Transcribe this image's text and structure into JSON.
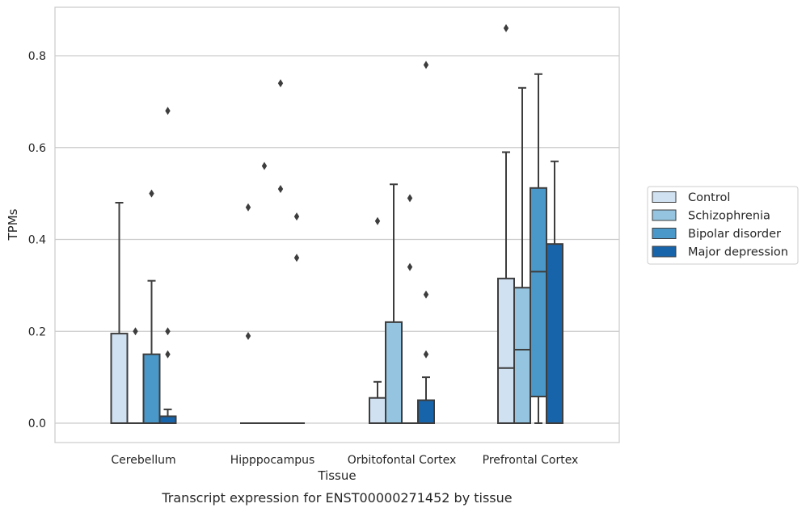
{
  "chart_data": {
    "type": "box",
    "title": "",
    "caption": "Transcript expression for ENST00000271452 by tissue",
    "xlabel": "Tissue",
    "ylabel": "TPMs",
    "ylim": [
      -0.04,
      0.905
    ],
    "yticks": [
      0.0,
      0.2,
      0.4,
      0.6,
      0.8
    ],
    "ytick_labels": [
      "0.0",
      "0.2",
      "0.4",
      "0.6",
      "0.8"
    ],
    "grid": "horizontal",
    "legend_position": "right",
    "categories": [
      "Cerebellum",
      "Hipppocampus",
      "Orbitofontal Cortex",
      "Prefrontal Cortex"
    ],
    "series": [
      {
        "name": "Control",
        "color": "#d0e1f2",
        "boxes": [
          {
            "q1": 0.0,
            "median": 0.0,
            "q3": 0.195,
            "whislo": 0.0,
            "whishi": 0.48,
            "fliers": []
          },
          {
            "q1": 0.0,
            "median": 0.0,
            "q3": 0.0,
            "whislo": 0.0,
            "whishi": 0.0,
            "fliers": [
              0.47,
              0.19
            ]
          },
          {
            "q1": 0.0,
            "median": 0.0,
            "q3": 0.055,
            "whislo": 0.0,
            "whishi": 0.09,
            "fliers": [
              0.44
            ]
          },
          {
            "q1": 0.0,
            "median": 0.12,
            "q3": 0.315,
            "whislo": 0.0,
            "whishi": 0.59,
            "fliers": [
              0.86
            ]
          }
        ]
      },
      {
        "name": "Schizophrenia",
        "color": "#94c4df",
        "boxes": [
          {
            "q1": 0.0,
            "median": 0.0,
            "q3": 0.0,
            "whislo": 0.0,
            "whishi": 0.0,
            "fliers": [
              0.2
            ]
          },
          {
            "q1": 0.0,
            "median": 0.0,
            "q3": 0.0,
            "whislo": 0.0,
            "whishi": 0.0,
            "fliers": [
              0.56
            ]
          },
          {
            "q1": 0.0,
            "median": 0.0,
            "q3": 0.22,
            "whislo": 0.0,
            "whishi": 0.52,
            "fliers": []
          },
          {
            "q1": 0.0,
            "median": 0.16,
            "q3": 0.295,
            "whislo": 0.0,
            "whishi": 0.73,
            "fliers": []
          }
        ]
      },
      {
        "name": "Bipolar disorder",
        "color": "#4a98c9",
        "boxes": [
          {
            "q1": 0.0,
            "median": 0.0,
            "q3": 0.15,
            "whislo": 0.0,
            "whishi": 0.31,
            "fliers": [
              0.5
            ]
          },
          {
            "q1": 0.0,
            "median": 0.0,
            "q3": 0.0,
            "whislo": 0.0,
            "whishi": 0.0,
            "fliers": [
              0.74,
              0.51
            ]
          },
          {
            "q1": 0.0,
            "median": 0.0,
            "q3": 0.0,
            "whislo": 0.0,
            "whishi": 0.0,
            "fliers": [
              0.49,
              0.34
            ]
          },
          {
            "q1": 0.058,
            "median": 0.33,
            "q3": 0.512,
            "whislo": 0.0,
            "whishi": 0.76,
            "fliers": []
          }
        ]
      },
      {
        "name": "Major depression",
        "color": "#1764ab",
        "boxes": [
          {
            "q1": 0.0,
            "median": 0.0,
            "q3": 0.015,
            "whislo": 0.0,
            "whishi": 0.03,
            "fliers": [
              0.68,
              0.2,
              0.15
            ]
          },
          {
            "q1": 0.0,
            "median": 0.0,
            "q3": 0.0,
            "whislo": 0.0,
            "whishi": 0.0,
            "fliers": [
              0.45,
              0.36
            ]
          },
          {
            "q1": 0.0,
            "median": 0.0,
            "q3": 0.05,
            "whislo": 0.0,
            "whishi": 0.1,
            "fliers": [
              0.78,
              0.28,
              0.15
            ]
          },
          {
            "q1": 0.0,
            "median": 0.0,
            "q3": 0.39,
            "whislo": 0.0,
            "whishi": 0.57,
            "fliers": []
          }
        ]
      }
    ]
  }
}
